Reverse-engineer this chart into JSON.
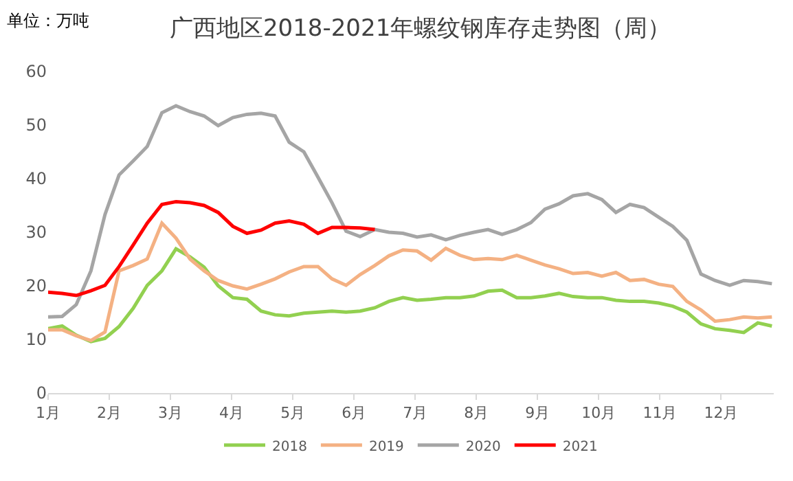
{
  "chart_data": {
    "type": "line",
    "title": "广西地区2018-2021年螺纹钢库存走势图（周）",
    "annotations": [
      "单位：万吨"
    ],
    "x": [
      1,
      1.23,
      1.46,
      1.7,
      1.93,
      2.16,
      2.39,
      2.62,
      2.86,
      3.09,
      3.32,
      3.55,
      3.78,
      4.02,
      4.25,
      4.48,
      4.71,
      4.94,
      5.18,
      5.41,
      5.64,
      5.87,
      6.1,
      6.34,
      6.57,
      6.8,
      7.03,
      7.26,
      7.5,
      7.73,
      7.96,
      8.19,
      8.42,
      8.66,
      8.89,
      9.12,
      9.35,
      9.58,
      9.82,
      10.05,
      10.28,
      10.51,
      10.74,
      10.98,
      11.21,
      11.44,
      11.67,
      11.9,
      12.14,
      12.37,
      12.6,
      12.83
    ],
    "series": [
      {
        "name": "2018",
        "color": "#92d050",
        "values": [
          12.0,
          12.5,
          10.8,
          9.6,
          10.2,
          12.4,
          15.8,
          20.1,
          22.8,
          26.9,
          25.4,
          23.5,
          20.0,
          17.8,
          17.5,
          15.3,
          14.6,
          14.4,
          14.9,
          15.1,
          15.3,
          15.1,
          15.3,
          15.9,
          17.1,
          17.8,
          17.3,
          17.5,
          17.8,
          17.8,
          18.1,
          19.0,
          19.2,
          17.8,
          17.8,
          18.1,
          18.6,
          18.0,
          17.8,
          17.8,
          17.3,
          17.1,
          17.1,
          16.8,
          16.2,
          15.1,
          12.9,
          12.0,
          11.7,
          11.3,
          13.1,
          12.5
        ]
      },
      {
        "name": "2019",
        "color": "#f4b183",
        "values": [
          11.8,
          11.8,
          10.7,
          9.8,
          11.4,
          22.8,
          23.8,
          25.0,
          31.7,
          28.9,
          25.0,
          22.8,
          21.0,
          20.0,
          19.4,
          20.3,
          21.3,
          22.6,
          23.6,
          23.6,
          21.3,
          20.1,
          22.1,
          23.8,
          25.6,
          26.7,
          26.5,
          24.8,
          27.0,
          25.7,
          24.9,
          25.1,
          24.9,
          25.7,
          24.8,
          23.9,
          23.2,
          22.3,
          22.5,
          21.8,
          22.5,
          21.0,
          21.2,
          20.3,
          19.9,
          17.1,
          15.5,
          13.4,
          13.7,
          14.2,
          14.0,
          14.2
        ]
      },
      {
        "name": "2020",
        "color": "#a5a5a5",
        "values": [
          14.2,
          14.3,
          16.5,
          22.8,
          33.3,
          40.7,
          43.3,
          46.0,
          52.3,
          53.6,
          52.5,
          51.7,
          49.9,
          51.4,
          52.0,
          52.2,
          51.7,
          46.8,
          45.0,
          40.3,
          35.5,
          30.2,
          29.2,
          30.5,
          30.0,
          29.8,
          29.1,
          29.5,
          28.6,
          29.4,
          30.0,
          30.5,
          29.6,
          30.5,
          31.8,
          34.3,
          35.3,
          36.8,
          37.2,
          36.1,
          33.7,
          35.2,
          34.6,
          32.8,
          31.1,
          28.5,
          22.2,
          21.0,
          20.1,
          21.0,
          20.8,
          20.4
        ]
      },
      {
        "name": "2021",
        "color": "#ff0000",
        "values": [
          18.8,
          18.6,
          18.2,
          19.1,
          20.1,
          23.6,
          27.6,
          31.7,
          35.2,
          35.7,
          35.5,
          35.0,
          33.7,
          31.1,
          29.8,
          30.4,
          31.7,
          32.1,
          31.5,
          29.8,
          30.9,
          30.9,
          30.8,
          30.5,
          null,
          null,
          null,
          null,
          null,
          null,
          null,
          null,
          null,
          null,
          null,
          null,
          null,
          null,
          null,
          null,
          null,
          null,
          null,
          null,
          null,
          null,
          null,
          null,
          null,
          null,
          null,
          null
        ]
      }
    ],
    "xlim": [
      1,
      12.86
    ],
    "xticks": [
      {
        "value": 1,
        "label": "1月"
      },
      {
        "value": 2,
        "label": "2月"
      },
      {
        "value": 3,
        "label": "3月"
      },
      {
        "value": 4,
        "label": "4月"
      },
      {
        "value": 5,
        "label": "5月"
      },
      {
        "value": 6,
        "label": "6月"
      },
      {
        "value": 7,
        "label": "7月"
      },
      {
        "value": 8,
        "label": "8月"
      },
      {
        "value": 9,
        "label": "9月"
      },
      {
        "value": 10,
        "label": "10月"
      },
      {
        "value": 11,
        "label": "11月"
      },
      {
        "value": 12,
        "label": "12月"
      }
    ],
    "ylim": [
      0,
      60
    ],
    "yticks": [
      0,
      10,
      20,
      30,
      40,
      50,
      60
    ],
    "grid": false,
    "legend": "bottom",
    "marker": "none",
    "line_style": "solid"
  }
}
